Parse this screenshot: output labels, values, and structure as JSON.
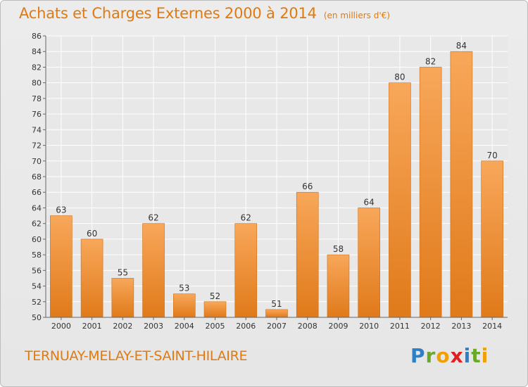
{
  "title": "Achats et Charges Externes 2000 à 2014",
  "unit": "(en milliers d'€)",
  "commune": "TERNUAY-MELAY-ET-SAINT-HILAIRE",
  "logo": {
    "letters": [
      "P",
      "r",
      "o",
      "x",
      "i",
      "t",
      "i"
    ],
    "colors": [
      "#2f7fc8",
      "#6aa82a",
      "#f0a000",
      "#e02020",
      "#2f7fc8",
      "#6aa82a",
      "#f0a000"
    ]
  },
  "colors": {
    "bar_light": "#f8a75a",
    "bar_dark": "#e07a1a",
    "title": "#e07a10"
  },
  "chart_data": {
    "type": "bar",
    "categories": [
      "2000",
      "2001",
      "2002",
      "2003",
      "2004",
      "2005",
      "2006",
      "2007",
      "2008",
      "2009",
      "2010",
      "2011",
      "2012",
      "2013",
      "2014"
    ],
    "values": [
      63,
      60,
      55,
      62,
      53,
      52,
      62,
      51,
      66,
      58,
      64,
      80,
      82,
      84,
      70
    ],
    "ylim": [
      50,
      86
    ],
    "yticks": [
      50,
      52,
      54,
      56,
      58,
      60,
      62,
      64,
      66,
      68,
      70,
      72,
      74,
      76,
      78,
      80,
      82,
      84,
      86
    ],
    "grid": true
  }
}
